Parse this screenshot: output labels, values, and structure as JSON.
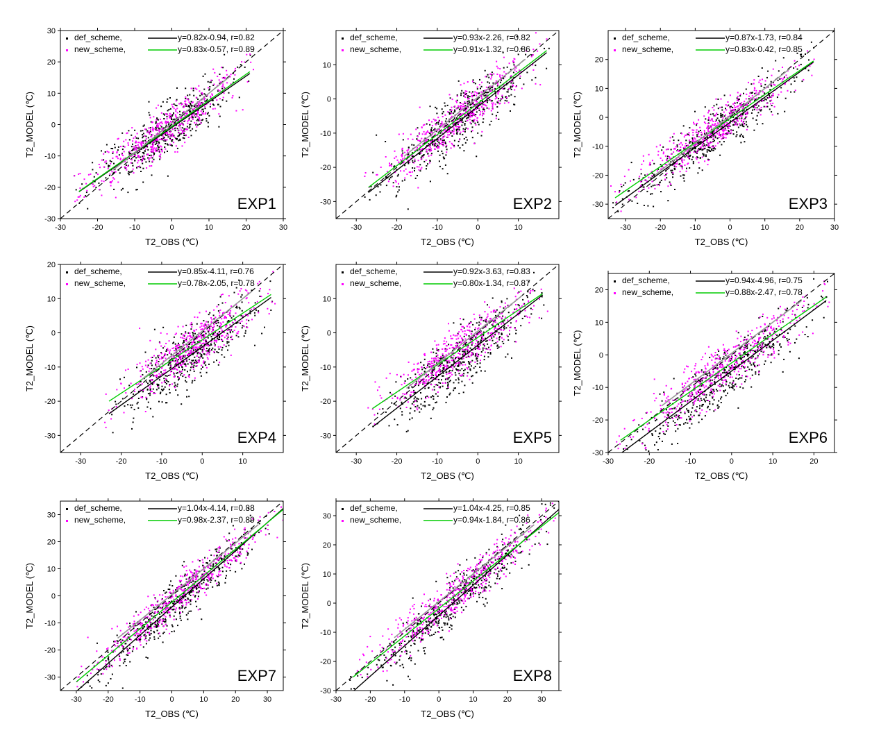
{
  "figure": {
    "legend_entry_def": "def_scheme,",
    "legend_entry_new": "new_scheme,",
    "colors": {
      "def_points": "#000000",
      "new_points": "#ff00ff",
      "def_fit": "#000000",
      "new_fit": "#00cc00",
      "one_to_one": "#000000",
      "overlay_line": "#9a9a9a"
    }
  },
  "chart_data": [
    {
      "type": "scatter",
      "title": "EXP1",
      "xlabel": "T2_OBS (℃)",
      "ylabel": "T2_MODEL (℃)",
      "xlim": [
        -30,
        30
      ],
      "ylim": [
        -30,
        30
      ],
      "xticks": [
        -30,
        -20,
        -10,
        0,
        10,
        20,
        30
      ],
      "yticks": [
        -30,
        -20,
        -10,
        0,
        10,
        20,
        30
      ],
      "obs_range": [
        -25,
        21
      ],
      "series": [
        {
          "name": "def_scheme",
          "equation": "y=0.82x-0.94, r=0.82",
          "slope": 0.82,
          "intercept": -0.94,
          "r": 0.82
        },
        {
          "name": "new_scheme",
          "equation": "y=0.83x-0.57, r=0.89",
          "slope": 0.83,
          "intercept": -0.57,
          "r": 0.89
        }
      ]
    },
    {
      "type": "scatter",
      "title": "EXP2",
      "xlabel": "T2_OBS (℃)",
      "ylabel": "T2_MODEL (℃)",
      "xlim": [
        -35,
        20
      ],
      "ylim": [
        -35,
        20
      ],
      "xticks": [
        -30,
        -20,
        -10,
        0,
        10
      ],
      "yticks": [
        -30,
        -20,
        -10,
        0,
        10
      ],
      "obs_range": [
        -27,
        17
      ],
      "series": [
        {
          "name": "def_scheme",
          "equation": "y=0.93x-2.26, r=0.82",
          "slope": 0.93,
          "intercept": -2.26,
          "r": 0.82
        },
        {
          "name": "new_scheme",
          "equation": "y=0.91x-1.32, r=0.86",
          "slope": 0.91,
          "intercept": -1.32,
          "r": 0.86
        }
      ]
    },
    {
      "type": "scatter",
      "title": "EXP3",
      "xlabel": "T2_OBS (℃)",
      "ylabel": "T2_MODEL (℃)",
      "xlim": [
        -35,
        30
      ],
      "ylim": [
        -35,
        30
      ],
      "xticks": [
        -30,
        -20,
        -10,
        0,
        10,
        20,
        30
      ],
      "yticks": [
        -30,
        -20,
        -10,
        0,
        10,
        20
      ],
      "obs_range": [
        -33,
        24
      ],
      "series": [
        {
          "name": "def_scheme",
          "equation": "y=0.87x-1.73, r=0.84",
          "slope": 0.87,
          "intercept": -1.73,
          "r": 0.84
        },
        {
          "name": "new_scheme",
          "equation": "y=0.83x-0.42, r=0.85",
          "slope": 0.83,
          "intercept": -0.42,
          "r": 0.85
        }
      ]
    },
    {
      "type": "scatter",
      "title": "EXP4",
      "xlabel": "T2_OBS (℃)",
      "ylabel": "T2_MODEL (℃)",
      "xlim": [
        -35,
        20
      ],
      "ylim": [
        -35,
        20
      ],
      "xticks": [
        -30,
        -20,
        -10,
        0,
        10
      ],
      "yticks": [
        -30,
        -20,
        -10,
        0,
        10,
        20
      ],
      "obs_range": [
        -23,
        17
      ],
      "series": [
        {
          "name": "def_scheme",
          "equation": "y=0.85x-4.11, r=0.76",
          "slope": 0.85,
          "intercept": -4.11,
          "r": 0.76
        },
        {
          "name": "new_scheme",
          "equation": "y=0.78x-2.05, r=0.78",
          "slope": 0.78,
          "intercept": -2.05,
          "r": 0.78
        }
      ]
    },
    {
      "type": "scatter",
      "title": "EXP5",
      "xlabel": "T2_OBS (℃)",
      "ylabel": "T2_MODEL (℃)",
      "xlim": [
        -35,
        20
      ],
      "ylim": [
        -35,
        20
      ],
      "xticks": [
        -30,
        -20,
        -10,
        0,
        10
      ],
      "yticks": [
        -30,
        -20,
        -10,
        0,
        10
      ],
      "obs_range": [
        -26,
        16
      ],
      "series": [
        {
          "name": "def_scheme",
          "equation": "y=0.92x-3.63, r=0.83",
          "slope": 0.92,
          "intercept": -3.63,
          "r": 0.83
        },
        {
          "name": "new_scheme",
          "equation": "y=0.80x-1.34, r=0.87",
          "slope": 0.8,
          "intercept": -1.34,
          "r": 0.87
        }
      ]
    },
    {
      "type": "scatter",
      "title": "EXP6",
      "xlabel": "T2_OBS (℃)",
      "ylabel": "T2_MODEL (℃)",
      "xlim": [
        -30,
        25
      ],
      "ylim": [
        -30,
        25
      ],
      "xticks": [
        -30,
        -20,
        -10,
        0,
        10,
        20
      ],
      "yticks": [
        -30,
        -20,
        -10,
        0,
        10,
        20
      ],
      "obs_range": [
        -27,
        23
      ],
      "series": [
        {
          "name": "def_scheme",
          "equation": "y=0.94x-4.96, r=0.75",
          "slope": 0.94,
          "intercept": -4.96,
          "r": 0.75
        },
        {
          "name": "new_scheme",
          "equation": "y=0.88x-2.47, r=0.78",
          "slope": 0.88,
          "intercept": -2.47,
          "r": 0.78
        }
      ]
    },
    {
      "type": "scatter",
      "title": "EXP7",
      "xlabel": "T2_OBS (℃)",
      "ylabel": "T2_MODEL (℃)",
      "xlim": [
        -35,
        35
      ],
      "ylim": [
        -35,
        35
      ],
      "xticks": [
        -30,
        -20,
        -10,
        0,
        10,
        20,
        30
      ],
      "yticks": [
        -30,
        -20,
        -10,
        0,
        10,
        20,
        30
      ],
      "obs_range": [
        -30,
        35
      ],
      "series": [
        {
          "name": "def_scheme",
          "equation": "y=1.04x-4.14, r=0.88",
          "slope": 1.04,
          "intercept": -4.14,
          "r": 0.88
        },
        {
          "name": "new_scheme",
          "equation": "y=0.98x-2.37, r=0.89",
          "slope": 0.98,
          "intercept": -2.37,
          "r": 0.89
        }
      ]
    },
    {
      "type": "scatter",
      "title": "EXP8",
      "xlabel": "T2_OBS (℃)",
      "ylabel": "T2_MODEL (℃)",
      "xlim": [
        -30,
        35
      ],
      "ylim": [
        -30,
        35
      ],
      "xticks": [
        -30,
        -20,
        -10,
        0,
        10,
        20,
        30
      ],
      "yticks": [
        -30,
        -20,
        -10,
        0,
        10,
        20,
        30
      ],
      "obs_range": [
        -25,
        35
      ],
      "series": [
        {
          "name": "def_scheme",
          "equation": "y=1.04x-4.25, r=0.85",
          "slope": 1.04,
          "intercept": -4.25,
          "r": 0.85
        },
        {
          "name": "new_scheme",
          "equation": "y=0.94x-1.84, r=0.86",
          "slope": 0.94,
          "intercept": -1.84,
          "r": 0.86
        }
      ]
    }
  ]
}
